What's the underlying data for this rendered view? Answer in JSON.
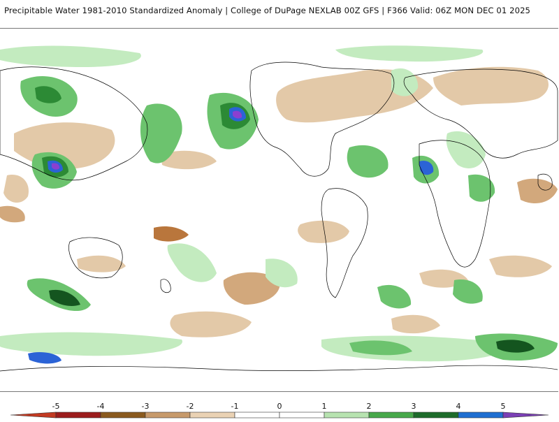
{
  "header": {
    "title": "Precipitable Water 1981-2010 Standardized Anomaly | College of DuPage NEXLAB  00Z GFS | F366 Valid: 06Z MON DEC 01 2025"
  },
  "colorbar": {
    "ticks": [
      "-5",
      "-4",
      "-3",
      "-2",
      "-1",
      "0",
      "1",
      "2",
      "3",
      "4",
      "5"
    ],
    "colors": [
      "#c23a22",
      "#9b1c1c",
      "#8a5a1e",
      "#c79a6b",
      "#ead2b4",
      "#ffffff",
      "#ffffff",
      "#b7e3b0",
      "#47a84a",
      "#1d6b2a",
      "#1f6fd1",
      "#7b3fb5"
    ]
  },
  "map": {
    "anomaly_colors": {
      "neg_light": "#e3c9a8",
      "neg_mid": "#d2a87c",
      "neg_strong": "#b9763c",
      "pos_light": "#c3ebbf",
      "pos_mid": "#6cc36e",
      "pos_strong": "#2c8a35",
      "pos_deep": "#14551f",
      "extreme_blue": "#2b63d6",
      "extreme_purple": "#8b3fd0"
    }
  }
}
